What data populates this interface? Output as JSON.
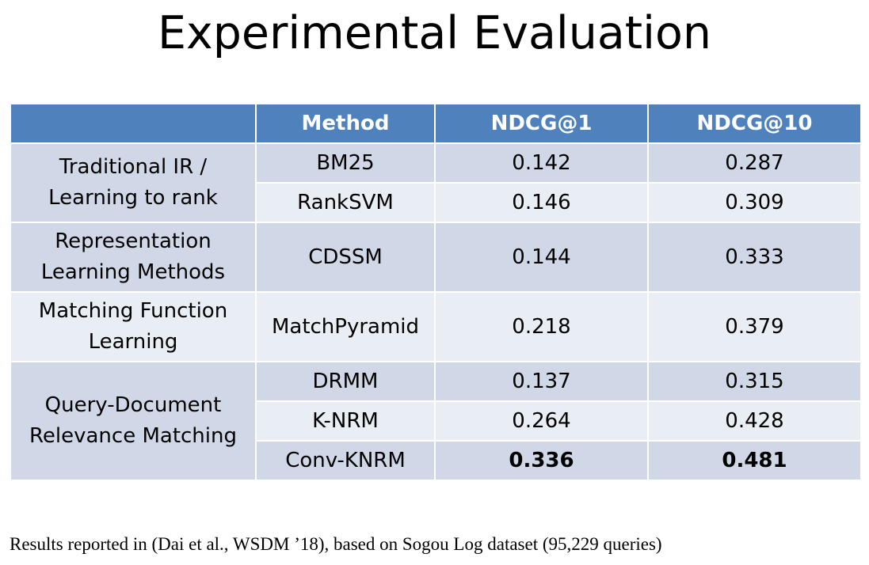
{
  "slide": {
    "title": "Experimental Evaluation",
    "footnote": "Results reported in (Dai et al., WSDM ’18), based on Sogou Log dataset (95,229 queries)"
  },
  "table": {
    "headers": [
      "",
      "Method",
      "NDCG@1",
      "NDCG@10"
    ],
    "groups": [
      {
        "label_line1": "Traditional IR /",
        "label_line2": "Learning to rank",
        "rows": [
          {
            "method": "BM25",
            "ndcg1": "0.142",
            "ndcg10": "0.287"
          },
          {
            "method": "RankSVM",
            "ndcg1": "0.146",
            "ndcg10": "0.309"
          }
        ]
      },
      {
        "label_line1": "Representation",
        "label_line2": "Learning Methods",
        "rows": [
          {
            "method": "CDSSM",
            "ndcg1": "0.144",
            "ndcg10": "0.333"
          }
        ]
      },
      {
        "label_line1": "Matching Function",
        "label_line2": "Learning",
        "rows": [
          {
            "method": "MatchPyramid",
            "ndcg1": "0.218",
            "ndcg10": "0.379"
          }
        ]
      },
      {
        "label_line1": "Query-Document",
        "label_line2": "Relevance Matching",
        "rows": [
          {
            "method": "DRMM",
            "ndcg1": "0.137",
            "ndcg10": "0.315"
          },
          {
            "method": "K-NRM",
            "ndcg1": "0.264",
            "ndcg10": "0.428"
          },
          {
            "method": "Conv-KNRM",
            "ndcg1": "0.336",
            "ndcg10": "0.481"
          }
        ]
      }
    ]
  }
}
